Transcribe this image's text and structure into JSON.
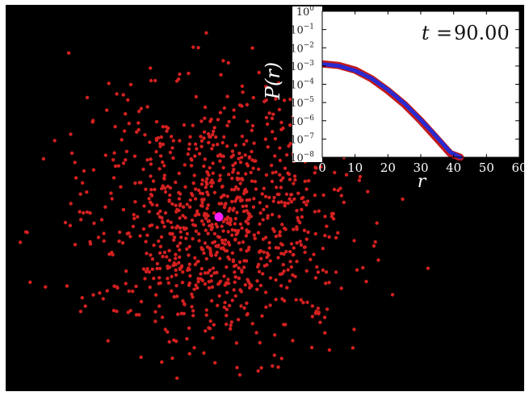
{
  "colors": {
    "background": "#000000",
    "particle": "#d42020",
    "tracer": "#ff20ff",
    "series_red": "#c41a1a",
    "series_blue": "#2a2ad0"
  },
  "chart_data": [
    {
      "type": "scatter",
      "description_role": "particle cloud",
      "series": [
        {
          "name": "",
          "marker": "particle",
          "count": 1000,
          "distribution": "gaussian cloud"
        },
        {
          "name": "",
          "marker": "tracer",
          "count": 1
        }
      ]
    },
    {
      "type": "line",
      "title": "",
      "annotation_t": "t",
      "annotation_eq": "=",
      "annotation_value": "90.00",
      "xlabel": "r",
      "ylabel": "P(r)",
      "xlim": [
        0,
        60
      ],
      "ylim_log10": [
        -8,
        0
      ],
      "yscale": "log",
      "xticks": [
        "0",
        "10",
        "20",
        "30",
        "40",
        "50",
        "60"
      ],
      "yticks": [
        {
          "base": "10",
          "exp": "0"
        },
        {
          "base": "10",
          "exp": "−1"
        },
        {
          "base": "10",
          "exp": "−2"
        },
        {
          "base": "10",
          "exp": "−3"
        },
        {
          "base": "10",
          "exp": "−4"
        },
        {
          "base": "10",
          "exp": "−5"
        },
        {
          "base": "10",
          "exp": "−6"
        },
        {
          "base": "10",
          "exp": "−7"
        },
        {
          "base": "10",
          "exp": "−8"
        }
      ],
      "series": [
        {
          "name": "",
          "color": "series_red",
          "x": [
            0,
            5,
            10,
            15,
            20,
            25,
            30,
            33,
            36,
            39,
            42
          ],
          "log10_y": [
            -2.88,
            -2.97,
            -3.22,
            -3.7,
            -4.35,
            -5.1,
            -6.0,
            -6.6,
            -7.2,
            -7.8,
            -8.0
          ]
        },
        {
          "name": "",
          "color": "series_blue",
          "x": [
            0,
            5,
            10,
            15,
            20,
            25,
            30,
            33,
            36,
            39,
            42
          ],
          "log10_y": [
            -2.9,
            -2.99,
            -3.25,
            -3.68,
            -4.3,
            -5.05,
            -5.95,
            -6.52,
            -7.12,
            -7.72,
            -8.0
          ]
        }
      ]
    }
  ]
}
